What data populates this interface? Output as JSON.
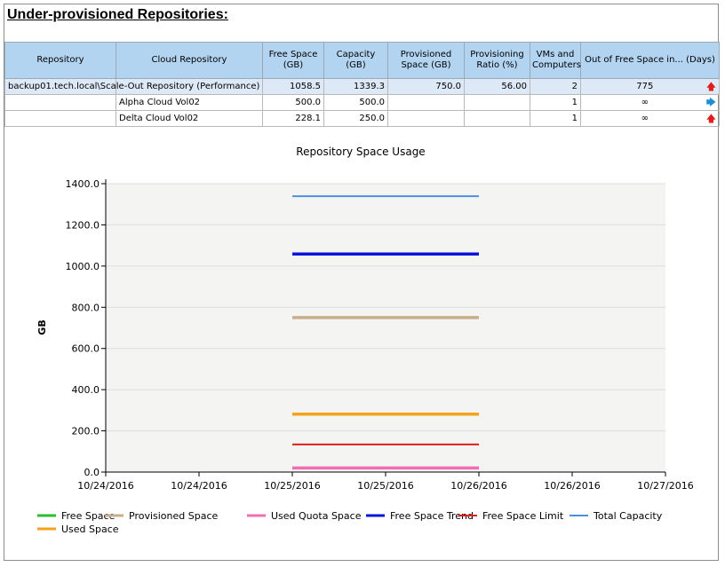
{
  "section_title": "Under-provisioned Repositories:",
  "table": {
    "headers": [
      "Repository",
      "Cloud Repository",
      "Free Space (GB)",
      "Capacity (GB)",
      "Provisioned Space (GB)",
      "Provisioning Ratio (%)",
      "VMs and Computers",
      "Out of Free Space in... (Days)"
    ],
    "rows": [
      {
        "repository": "backup01.tech.local\\Scale-Out Repository (Performance)",
        "cloud": "",
        "free": "1058.5",
        "capacity": "1339.3",
        "provisioned": "750.0",
        "ratio": "56.00",
        "vms": "2",
        "days": "775",
        "trend": "up-arrow-icon",
        "highlight": true
      },
      {
        "repository": "",
        "cloud": "Alpha Cloud Vol02",
        "free": "500.0",
        "capacity": "500.0",
        "provisioned": "",
        "ratio": "",
        "vms": "1",
        "days": "∞",
        "trend": "right-arrow-icon",
        "highlight": false
      },
      {
        "repository": "",
        "cloud": "Delta Cloud Vol02",
        "free": "228.1",
        "capacity": "250.0",
        "provisioned": "",
        "ratio": "",
        "vms": "1",
        "days": "∞",
        "trend": "up-arrow-icon",
        "highlight": false
      }
    ]
  },
  "chart_data": {
    "type": "line",
    "title": "Repository Space Usage",
    "xlabel": "",
    "ylabel": "GB",
    "x_ticks": [
      "10/24/2016",
      "10/24/2016",
      "10/25/2016",
      "10/25/2016",
      "10/26/2016",
      "10/26/2016",
      "10/27/2016"
    ],
    "y_ticks": [
      "0.0",
      "200.0",
      "400.0",
      "600.0",
      "800.0",
      "1000.0",
      "1200.0",
      "1400.0"
    ],
    "ylim": [
      0,
      1400
    ],
    "xlim": [
      "10/24/2016 00:00",
      "10/27/2016 00:00"
    ],
    "x": [
      "10/25/2016 00:00",
      "10/26/2016 00:00"
    ],
    "grid": true,
    "legend_position": "bottom",
    "series": [
      {
        "name": "Free Space",
        "color": "#2ebd2e",
        "values": [
          null,
          null
        ]
      },
      {
        "name": "Provisioned Space",
        "color": "#c8ae8a",
        "values": [
          750,
          750
        ]
      },
      {
        "name": "Used Quota Space",
        "color": "#f06eb5",
        "values": [
          20,
          20
        ]
      },
      {
        "name": "Free Space Trend",
        "color": "#0a14d6",
        "values": [
          1058.5,
          1058.5
        ]
      },
      {
        "name": "Free Space Limit",
        "color": "#e21b1b",
        "values": [
          134,
          134
        ]
      },
      {
        "name": "Total Capacity",
        "color": "#4a8fe0",
        "values": [
          1339.3,
          1339.3
        ]
      },
      {
        "name": "Used Space",
        "color": "#f5a11c",
        "values": [
          280.8,
          280.8
        ]
      }
    ]
  }
}
